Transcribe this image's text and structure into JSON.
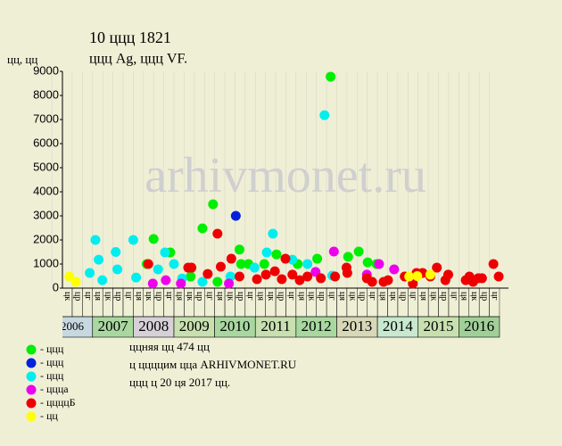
{
  "chart_data": {
    "type": "scatter",
    "title": "10 ццц 1821",
    "subtitle": "ццц Ag, ццц VF.",
    "y_label": "цц, цц",
    "watermark": "arhivmonet.ru",
    "ylim": [
      0,
      9000
    ],
    "yticks": [
      0,
      1000,
      2000,
      3000,
      4000,
      5000,
      6000,
      7000,
      8000,
      9000
    ],
    "xlim": [
      2006.26,
      2017.22
    ],
    "years": [
      2006,
      2007,
      2008,
      2009,
      2010,
      2011,
      2012,
      2013,
      2014,
      2015,
      2016
    ],
    "year_colors": [
      "#c8d8e0",
      "#a8d8a0",
      "#d8d0d8",
      "#c8e0b0",
      "#a8d8a0",
      "#c8e0b0",
      "#a8d8a0",
      "#d8d8b8",
      "#c8e8d0",
      "#c8e0b0",
      "#a0d098"
    ],
    "quarter_labels": [
      "ця",
      "цк",
      "цр",
      "цг"
    ],
    "notes": [
      "ццняя цц 474 цц",
      "ц ццццим цца ARHIVMONET.RU",
      "ццц ц 20 ця 2017 цц."
    ],
    "series": [
      {
        "name": "- ццц",
        "color": "#00ee00",
        "x": [
          2008.33,
          2008.5,
          2008.91,
          2009.7,
          2009.96,
          2010.07,
          2010.61,
          2010.65,
          2010.83,
          2011.22,
          2011.52,
          2012.04,
          2012.52,
          2012.85,
          2013.28,
          2013.54,
          2013.76,
          2013.98,
          2009.41
        ],
        "values": [
          1000,
          2040,
          1480,
          2480,
          3480,
          260,
          1600,
          1000,
          1000,
          1000,
          1400,
          1000,
          1220,
          8780,
          1300,
          1520,
          1070,
          1000,
          480
        ]
      },
      {
        "name": "- ццц",
        "color": "#0022dd",
        "x": [
          2010.52
        ],
        "values": [
          3000
        ]
      },
      {
        "name": "- ццц",
        "color": "#00eeee",
        "x": [
          2006.93,
          2007.07,
          2007.15,
          2007.24,
          2007.57,
          2007.61,
          2008.0,
          2008.07,
          2008.61,
          2008.78,
          2009.0,
          2009.2,
          2009.7,
          2010.39,
          2010.98,
          2011.28,
          2011.43,
          2011.91,
          2012.28,
          2012.7,
          2012.89
        ],
        "values": [
          630,
          2000,
          1180,
          330,
          1500,
          780,
          2000,
          440,
          780,
          1480,
          1000,
          400,
          260,
          480,
          850,
          1480,
          2260,
          1180,
          1000,
          7180,
          520
        ]
      },
      {
        "name": "- ццца",
        "color": "#ee00ee",
        "x": [
          2008.48,
          2008.8,
          2009.17,
          2010.35,
          2012.48,
          2012.93,
          2013.74,
          2014.04,
          2014.41
        ],
        "values": [
          190,
          330,
          190,
          190,
          670,
          1520,
          560,
          1000,
          780
        ]
      },
      {
        "name": "- ццццБ",
        "color": "#ee0000",
        "x": [
          2008.37,
          2009.35,
          2009.43,
          2009.83,
          2010.07,
          2010.15,
          2010.41,
          2010.61,
          2011.04,
          2011.26,
          2011.48,
          2011.65,
          2011.74,
          2011.91,
          2012.09,
          2012.28,
          2012.61,
          2012.96,
          2013.24,
          2013.26,
          2013.74,
          2013.87,
          2014.15,
          2014.26,
          2014.67,
          2014.87,
          2014.96,
          2015.11,
          2015.3,
          2015.46,
          2015.67,
          2015.74,
          2016.17,
          2016.26,
          2016.35,
          2016.48,
          2016.57,
          2016.85,
          2016.98
        ],
        "values": [
          1000,
          850,
          850,
          590,
          2260,
          890,
          1220,
          480,
          370,
          560,
          700,
          370,
          1220,
          560,
          330,
          480,
          410,
          480,
          850,
          630,
          410,
          260,
          260,
          330,
          480,
          190,
          630,
          630,
          480,
          850,
          330,
          560,
          330,
          480,
          260,
          410,
          410,
          1000,
          480
        ]
      },
      {
        "name": "- цц",
        "color": "#ffff00",
        "x": [
          2006.43,
          2006.59,
          2014.78,
          2014.98,
          2015.3
        ],
        "values": [
          480,
          260,
          480,
          500,
          560
        ]
      }
    ]
  }
}
